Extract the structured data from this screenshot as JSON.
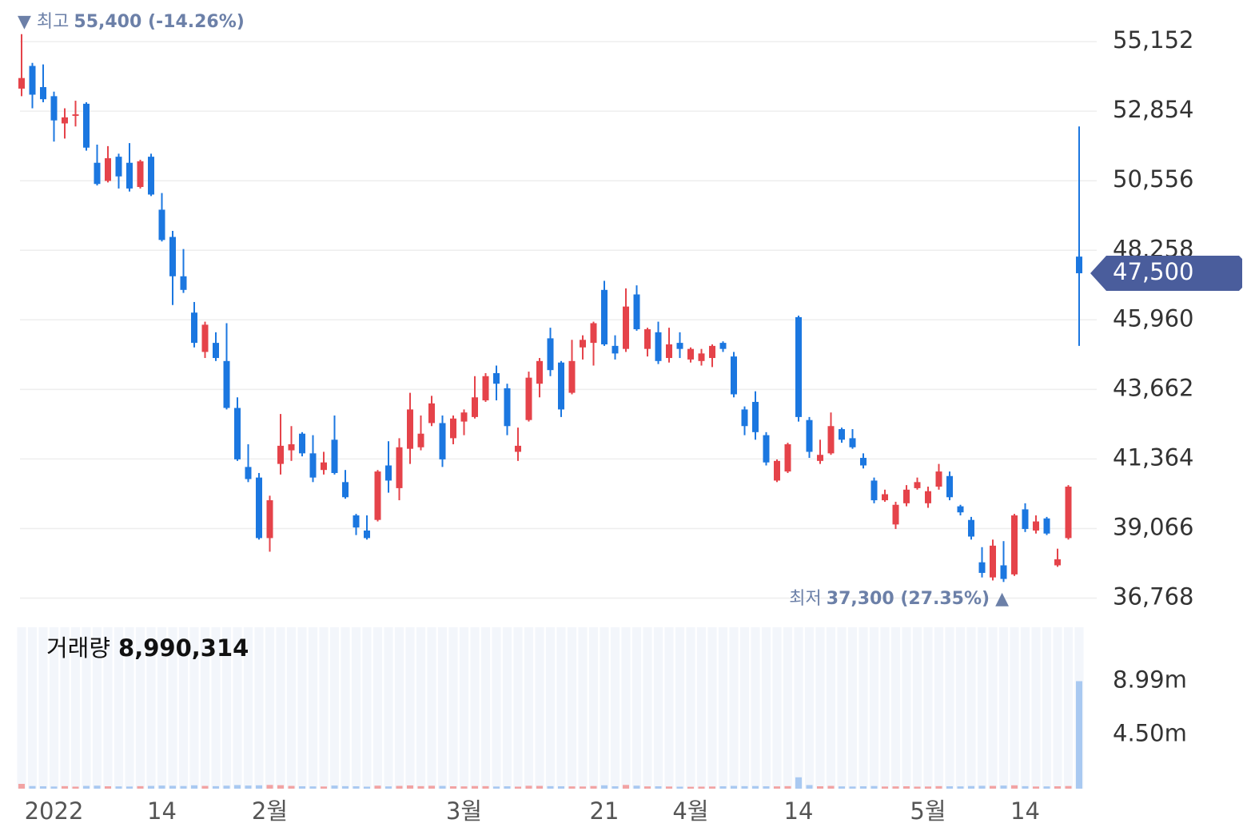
{
  "chart_data": {
    "type": "candlestick",
    "categories": [
      null,
      null,
      null,
      "2022",
      null,
      null,
      null,
      null,
      null,
      null,
      null,
      null,
      null,
      "14",
      null,
      null,
      null,
      null,
      null,
      null,
      null,
      null,
      null,
      "2월",
      null,
      null,
      null,
      null,
      null,
      null,
      null,
      null,
      null,
      null,
      null,
      null,
      null,
      null,
      null,
      null,
      null,
      "3월",
      null,
      null,
      null,
      null,
      null,
      null,
      null,
      null,
      null,
      null,
      null,
      null,
      "21",
      null,
      null,
      null,
      null,
      null,
      null,
      null,
      "4월",
      null,
      null,
      null,
      null,
      null,
      null,
      null,
      null,
      null,
      "14",
      null,
      null,
      null,
      null,
      null,
      null,
      null,
      null,
      null,
      null,
      null,
      "5월",
      null,
      null,
      null,
      null,
      null,
      null,
      null,
      null,
      "14",
      null,
      null,
      null,
      null,
      null
    ],
    "open": [
      53600,
      54350,
      53650,
      53350,
      52450,
      52700,
      53100,
      51150,
      50550,
      51350,
      51150,
      50350,
      51350,
      49600,
      48700,
      47400,
      46200,
      44900,
      45200,
      44600,
      43050,
      41100,
      40750,
      38750,
      41200,
      41650,
      42200,
      41550,
      41000,
      42000,
      40600,
      39500,
      39000,
      39350,
      41150,
      40400,
      41700,
      41750,
      42550,
      42550,
      42050,
      42600,
      42750,
      43300,
      44200,
      43700,
      41600,
      42650,
      43850,
      45350,
      44550,
      43550,
      45050,
      45200,
      46950,
      45100,
      45000,
      46800,
      45000,
      45550,
      44700,
      45200,
      44650,
      44600,
      44700,
      45200,
      44750,
      43000,
      43250,
      42150,
      40650,
      40950,
      46050,
      42650,
      41300,
      41550,
      42350,
      42050,
      41400,
      40650,
      40000,
      39200,
      39900,
      40400,
      39900,
      40450,
      40800,
      39800,
      39350,
      37950,
      37450,
      37850,
      37550,
      39700,
      39000,
      39400,
      37850,
      38750,
      48050
    ],
    "high": [
      55400,
      54450,
      54400,
      53500,
      52950,
      53200,
      53150,
      51750,
      51700,
      51450,
      51800,
      51250,
      51450,
      50150,
      48900,
      48300,
      46550,
      45900,
      45550,
      45850,
      43400,
      41850,
      40900,
      40150,
      42850,
      42450,
      42250,
      42150,
      41600,
      42800,
      41000,
      39550,
      39500,
      41000,
      41950,
      42050,
      43550,
      42800,
      43450,
      42800,
      42800,
      43000,
      44100,
      44200,
      44450,
      43850,
      42400,
      44250,
      44700,
      45700,
      44600,
      45300,
      45450,
      45900,
      47250,
      45450,
      47000,
      47100,
      45700,
      45900,
      45700,
      45550,
      45050,
      45000,
      45150,
      45250,
      44900,
      43100,
      43600,
      42250,
      41350,
      41900,
      46100,
      42750,
      42000,
      42900,
      42400,
      42350,
      41550,
      40750,
      40350,
      39950,
      40500,
      40750,
      40450,
      41200,
      40950,
      39850,
      39450,
      38450,
      38700,
      38650,
      39550,
      39900,
      39500,
      39450,
      38400,
      40500,
      52350
    ],
    "low": [
      53350,
      52950,
      53150,
      51850,
      51950,
      52350,
      51550,
      50400,
      50500,
      50300,
      50200,
      50300,
      50050,
      48550,
      46450,
      46850,
      45050,
      44700,
      44600,
      43000,
      41300,
      40600,
      38700,
      38300,
      40850,
      41300,
      41450,
      40600,
      40850,
      40850,
      40050,
      38850,
      38700,
      39300,
      40250,
      40000,
      41200,
      41650,
      42450,
      41100,
      41850,
      42150,
      42700,
      43250,
      43300,
      42150,
      41300,
      42600,
      43400,
      44100,
      42750,
      43500,
      44650,
      44450,
      45100,
      44650,
      44900,
      45600,
      44750,
      44500,
      44550,
      44700,
      44550,
      44450,
      44400,
      44900,
      43400,
      42150,
      42000,
      41150,
      40600,
      40900,
      42600,
      41400,
      41200,
      41500,
      41900,
      41700,
      41050,
      39900,
      39950,
      39050,
      39800,
      40350,
      39750,
      40350,
      40000,
      39500,
      38700,
      37450,
      37350,
      37300,
      37500,
      38950,
      38900,
      38850,
      37800,
      38700,
      45100
    ],
    "close": [
      53950,
      53400,
      53250,
      52550,
      52650,
      52750,
      51650,
      50450,
      51300,
      50700,
      50300,
      51200,
      50100,
      48600,
      47400,
      46950,
      45200,
      45800,
      44700,
      43050,
      41350,
      40700,
      38750,
      40000,
      41800,
      41850,
      41550,
      40750,
      41250,
      40900,
      40100,
      39100,
      38750,
      40950,
      40650,
      41750,
      43000,
      42200,
      43200,
      41350,
      42700,
      42900,
      43400,
      44100,
      43850,
      42450,
      41800,
      44050,
      44600,
      44300,
      43000,
      44600,
      45300,
      45850,
      45150,
      44850,
      46400,
      45650,
      45650,
      44600,
      45150,
      45000,
      45000,
      44850,
      45100,
      45000,
      43500,
      42450,
      42250,
      41250,
      41300,
      41850,
      42750,
      41600,
      41500,
      42450,
      42000,
      41750,
      41150,
      40000,
      40200,
      39850,
      40350,
      40600,
      40300,
      40950,
      40100,
      39600,
      38800,
      37600,
      38500,
      37400,
      39500,
      39050,
      39300,
      38900,
      38050,
      40450,
      47500
    ],
    "up_color": "#e5434a",
    "down_color": "#1b77e0",
    "ylim": [
      36200,
      56000
    ],
    "yticks": [
      {
        "value": 36768,
        "label": "36,768"
      },
      {
        "value": 39066,
        "label": "39,066"
      },
      {
        "value": 41364,
        "label": "41,364"
      },
      {
        "value": 43662,
        "label": "43,662"
      },
      {
        "value": 45960,
        "label": "45,960"
      },
      {
        "value": 48258,
        "label": "48,258"
      },
      {
        "value": 50556,
        "label": "50,556"
      },
      {
        "value": 52854,
        "label": "52,854"
      },
      {
        "value": 55152,
        "label": "55,152"
      }
    ],
    "grid": true,
    "current_price_label": "47,500",
    "annotations": {
      "high": {
        "name": "최고",
        "text": "55,400 (-14.26%)"
      },
      "low": {
        "name": "최저",
        "text": "37,300 (27.35%)"
      }
    },
    "volume": {
      "name": "거래량",
      "last_label": "8,990,314",
      "values": [
        400000,
        220000,
        200000,
        180000,
        210000,
        170000,
        230000,
        250000,
        200000,
        190000,
        180000,
        210000,
        230000,
        260000,
        240000,
        220000,
        280000,
        230000,
        210000,
        250000,
        300000,
        260000,
        280000,
        310000,
        290000,
        230000,
        200000,
        190000,
        180000,
        260000,
        210000,
        200000,
        170000,
        250000,
        190000,
        230000,
        270000,
        210000,
        240000,
        230000,
        200000,
        190000,
        220000,
        210000,
        180000,
        200000,
        170000,
        240000,
        230000,
        210000,
        200000,
        190000,
        180000,
        220000,
        280000,
        200000,
        310000,
        250000,
        190000,
        200000,
        180000,
        170000,
        160000,
        170000,
        180000,
        200000,
        230000,
        210000,
        220000,
        200000,
        190000,
        210000,
        950000,
        300000,
        200000,
        230000,
        190000,
        180000,
        200000,
        220000,
        180000,
        190000,
        200000,
        170000,
        180000,
        210000,
        200000,
        190000,
        220000,
        240000,
        230000,
        260000,
        280000,
        210000,
        180000,
        190000,
        200000,
        220000,
        8990314
      ],
      "up_color": "#f2a3a3",
      "down_color": "#a9c9f1",
      "ylim": [
        0,
        13500000
      ],
      "yticks": [
        {
          "value": 4495157,
          "label": "4.50m"
        },
        {
          "value": 8990314,
          "label": "8.99m"
        }
      ]
    }
  }
}
